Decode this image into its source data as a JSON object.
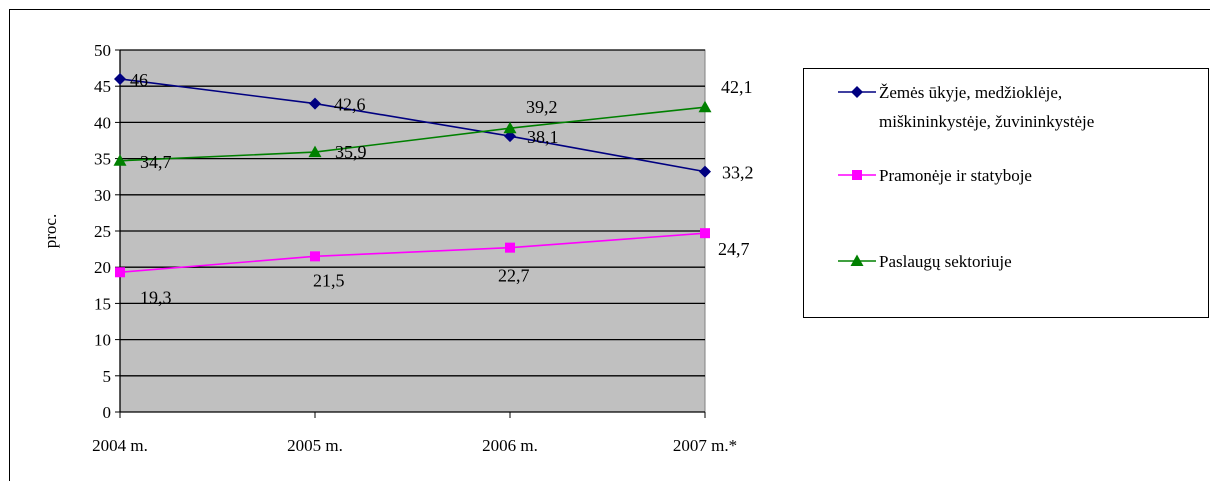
{
  "chart_data": {
    "type": "line",
    "categories": [
      "2004 m.",
      "2005 m.",
      "2006 m.",
      "2007 m.*"
    ],
    "ylabel": "proc.",
    "ylim": [
      0,
      50
    ],
    "yticks": [
      "0",
      "5",
      "10",
      "15",
      "20",
      "25",
      "30",
      "35",
      "40",
      "45",
      "50"
    ],
    "grid": true,
    "legend_position": "right",
    "series": [
      {
        "name": "Žemės ūkyje, medžioklėje, miškininkystėje, žuvininkystėje",
        "name_lines": [
          "Žemės ūkyje, medžioklėje,",
          "miškininkystėje, žuvininkystėje"
        ],
        "values": [
          46,
          42.6,
          38.1,
          33.2
        ],
        "labels": [
          "46",
          "42,6",
          "38,1",
          "33,2"
        ],
        "color": "#000080",
        "marker": "diamond"
      },
      {
        "name": "Pramonėje ir statyboje",
        "name_lines": [
          "Pramonėje ir statyboje"
        ],
        "values": [
          19.3,
          21.5,
          22.7,
          24.7
        ],
        "labels": [
          "19,3",
          "21,5",
          "22,7",
          "24,7"
        ],
        "color": "#ff00ff",
        "marker": "square"
      },
      {
        "name": "Paslaugų sektoriuje",
        "name_lines": [
          "Paslaugų sektoriuje"
        ],
        "values": [
          34.7,
          35.9,
          39.2,
          42.1
        ],
        "labels": [
          "34,7",
          "35,9",
          "39,2",
          "42,1"
        ],
        "color": "#008000",
        "marker": "triangle"
      }
    ],
    "plot_background": "#c0c0c0"
  }
}
